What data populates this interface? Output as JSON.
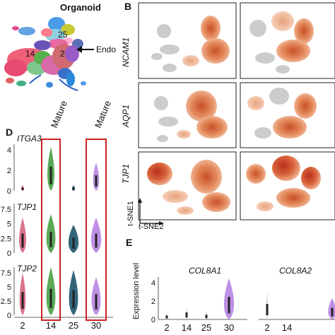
{
  "panels": {
    "A": {
      "letter": "",
      "title": "Organoid",
      "cluster_labels": [
        "25",
        "14",
        "2"
      ],
      "arrow_label": "Endo"
    },
    "B": {
      "letter": "B",
      "genes": [
        "NCAM1",
        "AQP1",
        "TJP1"
      ],
      "axis_x": "t-SNE2",
      "axis_y": "t-SNE1"
    },
    "D": {
      "letter": "D",
      "genes": [
        "ITGA3",
        "TJP1",
        "TJP2"
      ],
      "mature_label": "Mature",
      "clusters": [
        "2",
        "14",
        "25",
        "30"
      ],
      "cluster_colors": [
        "#e8904a",
        "#3e9a3a",
        "#0e4a62",
        "#9a62c8"
      ],
      "violin_colors": [
        "#d35a78",
        "#3e9a3a",
        "#0e4a62",
        "#b27de0"
      ],
      "row_ticks": [
        [
          "0",
          "2",
          "4"
        ],
        [
          "0",
          "2.5",
          "5",
          "7.5"
        ],
        [
          "0",
          "2.5",
          "5",
          "7.5"
        ]
      ]
    },
    "E": {
      "letter": "E",
      "genes": [
        "COL8A1",
        "COL8A2"
      ],
      "ylabel": "Expression level",
      "ticks": [
        "0",
        "2",
        "4"
      ],
      "clusters": [
        "2",
        "14",
        "25",
        "30"
      ],
      "cluster_colors": [
        "#e8904a",
        "#3e9a3a",
        "#0e4a62",
        "#3e9a3a"
      ]
    }
  }
}
